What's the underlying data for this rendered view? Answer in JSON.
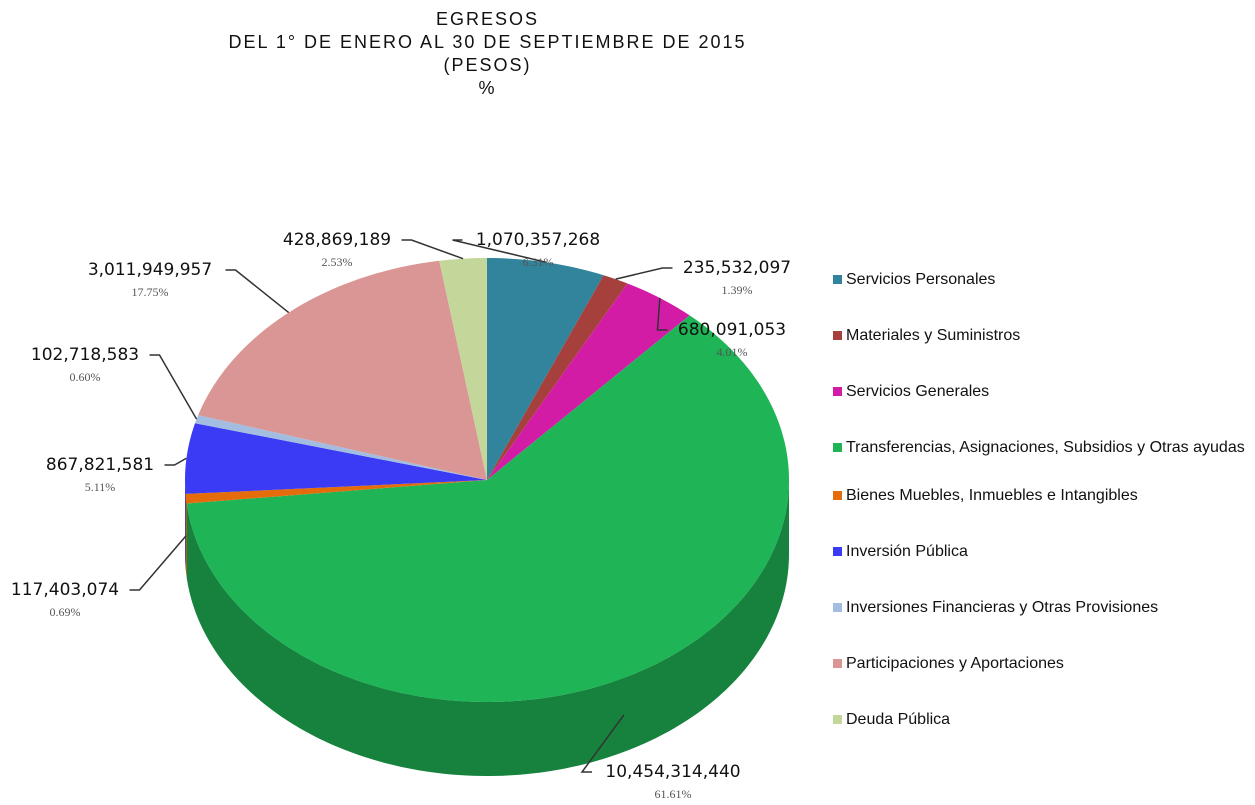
{
  "chart_data": {
    "type": "pie3d",
    "title": [
      "EGRESOS",
      "DEL 1° DE ENERO AL 30 DE SEPTIEMBRE DE 2015",
      "(PESOS)",
      "%"
    ],
    "categories": [
      "Servicios Personales",
      "Materiales y Suministros",
      "Servicios Generales",
      "Transferencias, Asignaciones, Subsidios y Otras ayudas",
      "Bienes Muebles, Inmuebles e Intangibles",
      "Inversión Pública",
      "Inversiones Financieras y Otras Provisiones",
      "Participaciones y Aportaciones",
      "Deuda Pública"
    ],
    "values": [
      1070357268,
      235532097,
      680091053,
      10454314440,
      117403074,
      867821581,
      102718583,
      3011949957,
      428869189
    ],
    "value_labels": [
      "1,070,357,268",
      "235,532,097",
      "680,091,053",
      "10,454,314,440",
      "117,403,074",
      "867,821,581",
      "102,718,583",
      "3,011,949,957",
      "428,869,189"
    ],
    "percent_labels": [
      "6.31%",
      "1.39%",
      "4.01%",
      "61.61%",
      "0.69%",
      "5.11%",
      "0.60%",
      "17.75%",
      "2.53%"
    ],
    "colors": [
      "#31849b",
      "#a5403c",
      "#d21ca6",
      "#1fb456",
      "#e46c0a",
      "#3b3bf5",
      "#a3bde0",
      "#d99694",
      "#c4d79b"
    ],
    "legend": "right"
  }
}
